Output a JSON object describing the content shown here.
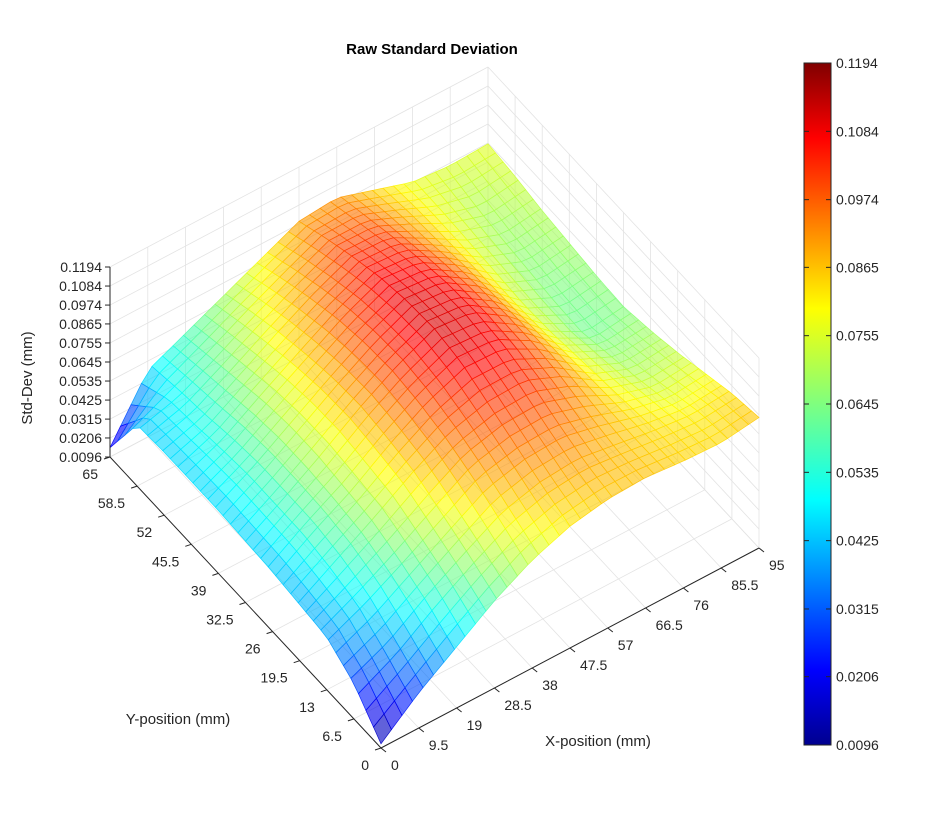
{
  "chart_data": {
    "type": "surface",
    "title": "Raw Standard Deviation",
    "xlabel": "X-position (mm)",
    "ylabel": "Y-position (mm)",
    "zlabel": "Std-Dev (mm)",
    "xlim": [
      0,
      95
    ],
    "ylim": [
      0,
      65
    ],
    "zlim": [
      0.0096,
      0.1194
    ],
    "x_ticks": [
      "0",
      "9.5",
      "19",
      "28.5",
      "38",
      "47.5",
      "57",
      "66.5",
      "76",
      "85.5",
      "95"
    ],
    "y_ticks": [
      "0",
      "6.5",
      "13",
      "19.5",
      "26",
      "32.5",
      "39",
      "45.5",
      "52",
      "58.5",
      "65"
    ],
    "z_ticks": [
      "0.0096",
      "0.0206",
      "0.0315",
      "0.0425",
      "0.0535",
      "0.0645",
      "0.0755",
      "0.0865",
      "0.0974",
      "0.1084",
      "0.1194"
    ],
    "colorbar_ticks": [
      "0.0096",
      "0.0206",
      "0.0315",
      "0.0425",
      "0.0535",
      "0.0645",
      "0.0755",
      "0.0865",
      "0.0974",
      "0.1084",
      "0.1194"
    ],
    "colormap": "jet",
    "grid": true,
    "x": [
      0,
      9.5,
      19,
      28.5,
      38,
      47.5,
      57,
      66.5,
      76,
      85.5,
      95
    ],
    "y": [
      0,
      6.5,
      13,
      19.5,
      26,
      32.5,
      39,
      45.5,
      52,
      58.5,
      65
    ],
    "z": [
      [
        0.012,
        0.03,
        0.045,
        0.06,
        0.072,
        0.08,
        0.084,
        0.085,
        0.083,
        0.082,
        0.085
      ],
      [
        0.03,
        0.04,
        0.055,
        0.068,
        0.08,
        0.086,
        0.088,
        0.085,
        0.082,
        0.08,
        0.082
      ],
      [
        0.04,
        0.05,
        0.062,
        0.075,
        0.088,
        0.093,
        0.094,
        0.088,
        0.08,
        0.075,
        0.077
      ],
      [
        0.042,
        0.055,
        0.068,
        0.082,
        0.094,
        0.1,
        0.101,
        0.092,
        0.078,
        0.07,
        0.072
      ],
      [
        0.044,
        0.058,
        0.07,
        0.085,
        0.098,
        0.107,
        0.106,
        0.094,
        0.076,
        0.066,
        0.068
      ],
      [
        0.045,
        0.058,
        0.072,
        0.087,
        0.1,
        0.11,
        0.108,
        0.094,
        0.074,
        0.062,
        0.065
      ],
      [
        0.046,
        0.058,
        0.072,
        0.086,
        0.099,
        0.109,
        0.107,
        0.093,
        0.073,
        0.063,
        0.066
      ],
      [
        0.046,
        0.056,
        0.07,
        0.083,
        0.096,
        0.106,
        0.104,
        0.091,
        0.074,
        0.065,
        0.068
      ],
      [
        0.046,
        0.053,
        0.066,
        0.079,
        0.091,
        0.101,
        0.1,
        0.088,
        0.075,
        0.067,
        0.07
      ],
      [
        0.045,
        0.051,
        0.062,
        0.074,
        0.085,
        0.095,
        0.095,
        0.086,
        0.076,
        0.07,
        0.073
      ],
      [
        0.015,
        0.048,
        0.058,
        0.068,
        0.078,
        0.088,
        0.09,
        0.083,
        0.076,
        0.074,
        0.075
      ]
    ]
  }
}
